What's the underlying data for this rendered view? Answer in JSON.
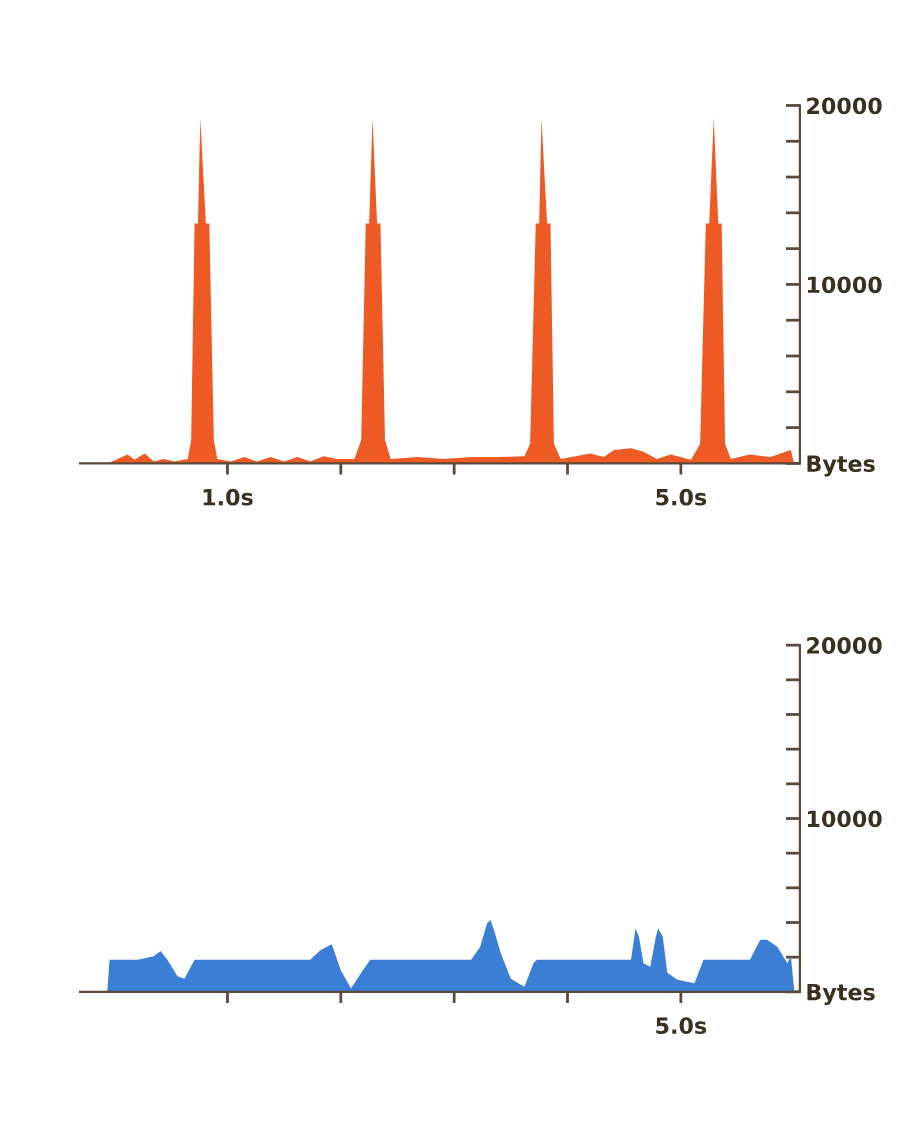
{
  "chart_data": [
    {
      "type": "area",
      "x": [
        -0.06,
        0.03,
        0.12,
        0.18,
        0.27,
        0.35,
        0.44,
        0.53,
        0.65,
        0.68,
        0.71,
        0.74,
        0.76,
        0.81,
        0.84,
        0.88,
        0.91,
        1.03,
        1.15,
        1.26,
        1.38,
        1.5,
        1.62,
        1.73,
        1.85,
        1.97,
        2.12,
        2.18,
        2.22,
        2.25,
        2.28,
        2.32,
        2.35,
        2.39,
        2.44,
        2.68,
        2.91,
        3.15,
        3.38,
        3.62,
        3.67,
        3.72,
        3.75,
        3.77,
        3.82,
        3.85,
        3.88,
        3.94,
        4.2,
        4.32,
        4.41,
        4.56,
        4.67,
        4.79,
        4.91,
        5.09,
        5.17,
        5.22,
        5.25,
        5.29,
        5.33,
        5.36,
        5.39,
        5.44,
        5.61,
        5.79,
        5.97,
        6.0
      ],
      "series": [
        {
          "color": "#ee5a24",
          "values": [
            0,
            250,
            500,
            200,
            550,
            100,
            250,
            100,
            250,
            1300,
            13400,
            13400,
            19300,
            13400,
            13400,
            1300,
            250,
            100,
            350,
            100,
            350,
            100,
            350,
            100,
            400,
            250,
            250,
            1300,
            13400,
            13400,
            19300,
            13400,
            13400,
            1300,
            250,
            350,
            250,
            350,
            350,
            400,
            1100,
            13400,
            13400,
            19300,
            13400,
            13400,
            1100,
            250,
            550,
            350,
            750,
            850,
            650,
            250,
            500,
            200,
            1100,
            13400,
            13400,
            19300,
            13400,
            13400,
            1100,
            250,
            500,
            350,
            750,
            0
          ]
        }
      ],
      "xlim": [
        -0.3,
        6.05
      ],
      "ylim": [
        0,
        20000
      ],
      "xticks": [
        {
          "value": 1,
          "label": "1.0s"
        },
        {
          "value": 2,
          "label": null
        },
        {
          "value": 3,
          "label": null
        },
        {
          "value": 4,
          "label": null
        },
        {
          "value": 5,
          "label": "5.0s"
        }
      ],
      "yticks": [
        {
          "value": 0,
          "label": "Bytes"
        },
        {
          "value": 2000,
          "label": null
        },
        {
          "value": 4000,
          "label": null
        },
        {
          "value": 6000,
          "label": null
        },
        {
          "value": 8000,
          "label": null
        },
        10000,
        {
          "value": 12000,
          "label": null
        },
        {
          "value": 14000,
          "label": null
        },
        {
          "value": 16000,
          "label": null
        },
        {
          "value": 18000,
          "label": null
        },
        20000
      ]
    },
    {
      "type": "area",
      "x": [
        -0.06,
        -0.04,
        0.21,
        0.35,
        0.41,
        0.47,
        0.56,
        0.62,
        0.71,
        1.03,
        1.73,
        1.82,
        1.92,
        2.0,
        2.09,
        2.18,
        2.26,
        3.15,
        3.23,
        3.29,
        3.32,
        3.35,
        3.41,
        3.5,
        3.62,
        3.7,
        3.73,
        4.56,
        4.59,
        4.6,
        4.63,
        4.67,
        4.73,
        4.78,
        4.8,
        4.84,
        4.88,
        4.97,
        5.12,
        5.2,
        5.61,
        5.7,
        5.76,
        5.85,
        5.94,
        5.97,
        6.0
      ],
      "series": [
        {
          "color": "#3a7fd5",
          "values": [
            0,
            1850,
            1850,
            2050,
            2350,
            1850,
            900,
            750,
            1850,
            1850,
            1850,
            2400,
            2750,
            1250,
            200,
            1100,
            1850,
            1850,
            2600,
            3950,
            4150,
            3600,
            2250,
            750,
            300,
            1650,
            1850,
            1850,
            3200,
            3650,
            3200,
            1650,
            1450,
            3200,
            3650,
            3200,
            1100,
            700,
            500,
            1850,
            1850,
            3000,
            3000,
            2600,
            1650,
            2050,
            100
          ]
        }
      ],
      "xlim": [
        -0.3,
        6.05
      ],
      "ylim": [
        0,
        20000
      ],
      "xticks": [
        {
          "value": 1,
          "label": null
        },
        {
          "value": 2,
          "label": null
        },
        {
          "value": 3,
          "label": null
        },
        {
          "value": 4,
          "label": null
        },
        {
          "value": 5,
          "label": null
        }
      ],
      "tick_labels": "y",
      "annotations": [
        "5.0s"
      ],
      "yticks": [
        {
          "value": 0,
          "label": "Bytes"
        },
        {
          "value": 2000,
          "label": null
        },
        {
          "value": 4000,
          "label": null
        },
        {
          "value": 6000,
          "label": null
        },
        {
          "value": 8000,
          "label": null
        },
        10000,
        {
          "value": 12000,
          "label": null
        },
        {
          "value": 14000,
          "label": null
        },
        {
          "value": 16000,
          "label": null
        },
        {
          "value": 18000,
          "label": null
        },
        20000
      ]
    }
  ]
}
